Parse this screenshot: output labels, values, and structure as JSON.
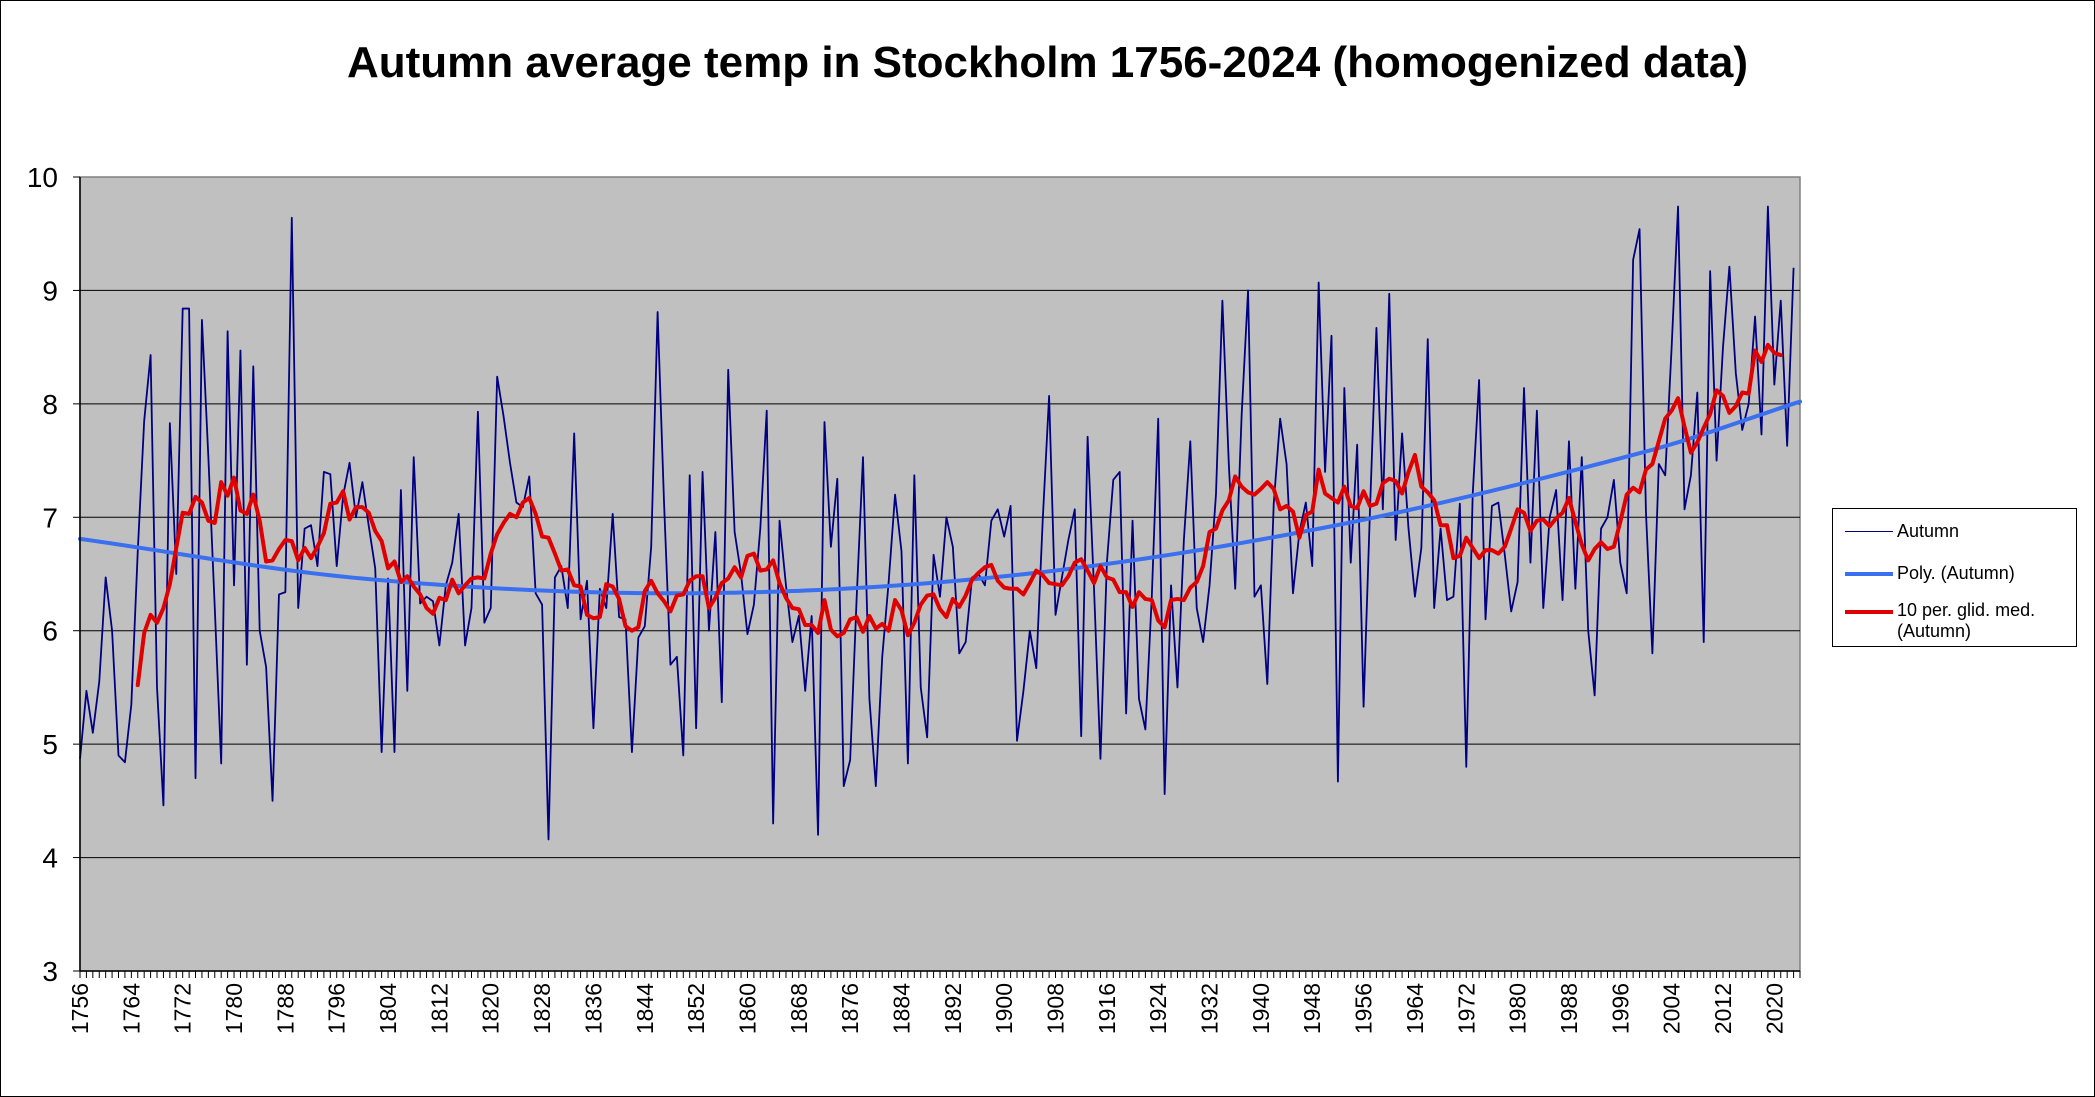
{
  "chart_data": {
    "type": "line",
    "title": "Autumn average temp in Stockholm 1756-2024 (homogenized data)",
    "xlabel": "",
    "ylabel": "",
    "ylim": [
      3,
      10
    ],
    "xlim": [
      1756,
      2024
    ],
    "yticks": [
      3,
      4,
      5,
      6,
      7,
      8,
      9,
      10
    ],
    "xticks": [
      1756,
      1764,
      1772,
      1780,
      1788,
      1796,
      1804,
      1812,
      1820,
      1828,
      1836,
      1844,
      1852,
      1860,
      1868,
      1876,
      1884,
      1892,
      1900,
      1908,
      1916,
      1924,
      1932,
      1940,
      1948,
      1956,
      1964,
      1972,
      1980,
      1988,
      1996,
      2004,
      2012,
      2020
    ],
    "xtick_labels": [
      "1756",
      "1764",
      "1772",
      "1780",
      "1788",
      "1796",
      "1804",
      "1812",
      "1820",
      "1828",
      "1836",
      "1844",
      "1852",
      "1860",
      "1868",
      "1876",
      "1884",
      "1892",
      "1900",
      "1908",
      "1916",
      "1924",
      "1932",
      "1940",
      "1948",
      "1956",
      "1964",
      "1972",
      "1980",
      "1988",
      "1996",
      "2004",
      "2012",
      "2020"
    ],
    "grid": true,
    "plot_background": "#c0c0c0",
    "legend_position": "right",
    "series": [
      {
        "name": "Autumn",
        "color": "#000080",
        "x_start": 1756,
        "values": [
          4.87,
          5.47,
          5.1,
          5.55,
          6.47,
          6.0,
          4.9,
          4.84,
          5.35,
          6.7,
          7.85,
          8.43,
          5.5,
          4.46,
          7.83,
          6.5,
          8.84,
          8.84,
          4.7,
          8.74,
          7.53,
          6.2,
          4.83,
          8.64,
          6.4,
          8.47,
          5.7,
          8.33,
          6.0,
          5.68,
          4.5,
          6.32,
          6.34,
          9.64,
          6.2,
          6.9,
          6.93,
          6.57,
          7.4,
          7.38,
          6.57,
          7.19,
          7.48,
          7.0,
          7.31,
          6.92,
          6.55,
          4.93,
          6.46,
          4.93,
          7.24,
          5.47,
          7.53,
          6.24,
          6.3,
          6.26,
          5.87,
          6.4,
          6.6,
          7.03,
          5.87,
          6.2,
          7.93,
          6.07,
          6.2,
          8.24,
          7.89,
          7.48,
          7.13,
          7.09,
          7.36,
          6.33,
          6.23,
          4.16,
          6.47,
          6.57,
          6.2,
          7.74,
          6.1,
          6.44,
          5.14,
          6.37,
          6.2,
          7.03,
          6.12,
          6.1,
          4.93,
          5.94,
          6.04,
          6.74,
          8.81,
          7.13,
          5.7,
          5.77,
          4.9,
          7.37,
          5.14,
          7.4,
          6.0,
          6.87,
          5.37,
          8.3,
          6.87,
          6.5,
          5.97,
          6.23,
          6.9,
          7.94,
          4.3,
          6.97,
          6.4,
          5.9,
          6.13,
          5.47,
          6.13,
          4.2,
          7.84,
          6.74,
          7.34,
          4.63,
          4.86,
          6.27,
          7.53,
          5.4,
          4.63,
          5.77,
          6.43,
          7.2,
          6.7,
          4.83,
          7.37,
          5.5,
          5.06,
          6.67,
          6.3,
          7.0,
          6.74,
          5.8,
          5.9,
          6.47,
          6.5,
          6.4,
          6.97,
          7.07,
          6.83,
          7.1,
          5.03,
          5.47,
          6.0,
          5.67,
          6.97,
          8.07,
          6.14,
          6.47,
          6.8,
          7.07,
          5.07,
          7.71,
          6.37,
          4.87,
          6.6,
          7.33,
          7.4,
          5.27,
          6.97,
          5.4,
          5.13,
          6.3,
          7.87,
          4.56,
          6.4,
          5.5,
          6.8,
          7.67,
          6.2,
          5.9,
          6.4,
          7.2,
          8.91,
          7.47,
          6.37,
          7.9,
          9.0,
          6.3,
          6.4,
          5.53,
          7.12,
          7.87,
          7.47,
          6.33,
          6.87,
          7.13,
          6.57,
          9.07,
          7.4,
          8.6,
          4.67,
          8.14,
          6.6,
          7.64,
          5.33,
          7.07,
          8.67,
          7.07,
          8.97,
          6.8,
          7.74,
          6.9,
          6.3,
          6.73,
          8.57,
          6.2,
          6.9,
          6.27,
          6.3,
          7.12,
          4.8,
          7.2,
          8.21,
          6.1,
          7.1,
          7.13,
          6.67,
          6.17,
          6.43,
          8.14,
          6.6,
          7.94,
          6.2,
          7.0,
          7.24,
          6.27,
          7.67,
          6.37,
          7.53,
          6.0,
          5.43,
          6.9,
          7.0,
          7.33,
          6.6,
          6.33,
          9.27,
          9.54,
          7.04,
          5.8,
          7.47,
          7.37,
          8.5,
          9.74,
          7.07,
          7.37,
          8.1,
          5.9,
          9.17,
          7.5,
          8.5,
          9.21,
          8.27,
          7.77,
          8.0,
          8.77,
          7.73,
          9.74,
          8.17,
          8.91,
          7.63,
          9.2
        ]
      },
      {
        "name": "Poly. (Autumn)",
        "color": "#3a6ff0",
        "type": "trend",
        "polynomial": [
          {
            "year": 1756,
            "value": 6.81
          },
          {
            "year": 1800,
            "value": 6.46
          },
          {
            "year": 1850,
            "value": 6.33
          },
          {
            "year": 1900,
            "value": 6.48
          },
          {
            "year": 1950,
            "value": 6.91
          },
          {
            "year": 2000,
            "value": 7.58
          },
          {
            "year": 2024,
            "value": 8.02
          }
        ]
      },
      {
        "name": "10 per. glid. med. (Autumn)",
        "label_lines": [
          "10 per. glid. med.",
          "(Autumn)"
        ],
        "color": "#e00000",
        "x_start": 1765,
        "values": [
          5.52,
          5.98,
          6.14,
          6.07,
          6.2,
          6.41,
          6.73,
          7.04,
          7.03,
          7.18,
          7.13,
          6.97,
          6.95,
          7.31,
          7.19,
          7.35,
          7.06,
          7.03,
          7.2,
          6.97,
          6.61,
          6.62,
          6.72,
          6.8,
          6.79,
          6.62,
          6.73,
          6.64,
          6.74,
          6.86,
          7.12,
          7.13,
          7.23,
          6.98,
          7.09,
          7.09,
          7.04,
          6.88,
          6.79,
          6.55,
          6.61,
          6.43,
          6.48,
          6.39,
          6.32,
          6.2,
          6.15,
          6.29,
          6.27,
          6.45,
          6.33,
          6.4,
          6.46,
          6.47,
          6.46,
          6.68,
          6.85,
          6.95,
          7.03,
          7.0,
          7.13,
          7.17,
          7.03,
          6.83,
          6.82,
          6.68,
          6.53,
          6.54,
          6.4,
          6.39,
          6.14,
          6.11,
          6.12,
          6.41,
          6.39,
          6.28,
          6.04,
          6.0,
          6.03,
          6.35,
          6.44,
          6.33,
          6.26,
          6.17,
          6.31,
          6.32,
          6.44,
          6.48,
          6.48,
          6.2,
          6.29,
          6.42,
          6.46,
          6.56,
          6.47,
          6.66,
          6.68,
          6.53,
          6.54,
          6.62,
          6.42,
          6.29,
          6.2,
          6.19,
          6.05,
          6.05,
          5.98,
          6.27,
          6.01,
          5.95,
          5.98,
          6.1,
          6.12,
          5.99,
          6.13,
          6.02,
          6.06,
          6.0,
          6.27,
          6.18,
          5.96,
          6.07,
          6.23,
          6.31,
          6.32,
          6.19,
          6.12,
          6.28,
          6.21,
          6.31,
          6.45,
          6.51,
          6.56,
          6.58,
          6.44,
          6.38,
          6.37,
          6.37,
          6.32,
          6.42,
          6.53,
          6.49,
          6.42,
          6.41,
          6.4,
          6.48,
          6.6,
          6.63,
          6.53,
          6.42,
          6.57,
          6.47,
          6.45,
          6.34,
          6.34,
          6.21,
          6.34,
          6.28,
          6.27,
          6.09,
          6.03,
          6.27,
          6.28,
          6.27,
          6.38,
          6.43,
          6.57,
          6.87,
          6.9,
          7.06,
          7.15,
          7.36,
          7.27,
          7.22,
          7.2,
          7.25,
          7.31,
          7.25,
          7.07,
          7.1,
          7.05,
          6.82,
          7.02,
          7.05,
          7.42,
          7.21,
          7.17,
          7.13,
          7.27,
          7.1,
          7.08,
          7.23,
          7.1,
          7.12,
          7.3,
          7.34,
          7.32,
          7.21,
          7.4,
          7.55,
          7.27,
          7.22,
          7.15,
          6.93,
          6.93,
          6.64,
          6.66,
          6.82,
          6.73,
          6.64,
          6.71,
          6.71,
          6.68,
          6.74,
          6.9,
          7.07,
          7.04,
          6.88,
          6.97,
          6.98,
          6.92,
          6.99,
          7.04,
          7.17,
          6.96,
          6.76,
          6.62,
          6.72,
          6.78,
          6.72,
          6.74,
          6.96,
          7.2,
          7.26,
          7.22,
          7.42,
          7.47,
          7.67,
          7.87,
          7.94,
          8.05,
          7.8,
          7.57,
          7.66,
          7.79,
          7.91,
          8.12,
          8.07,
          7.92,
          7.98,
          8.1,
          8.09,
          8.47,
          8.37,
          8.52,
          8.45,
          8.43
        ]
      }
    ]
  }
}
